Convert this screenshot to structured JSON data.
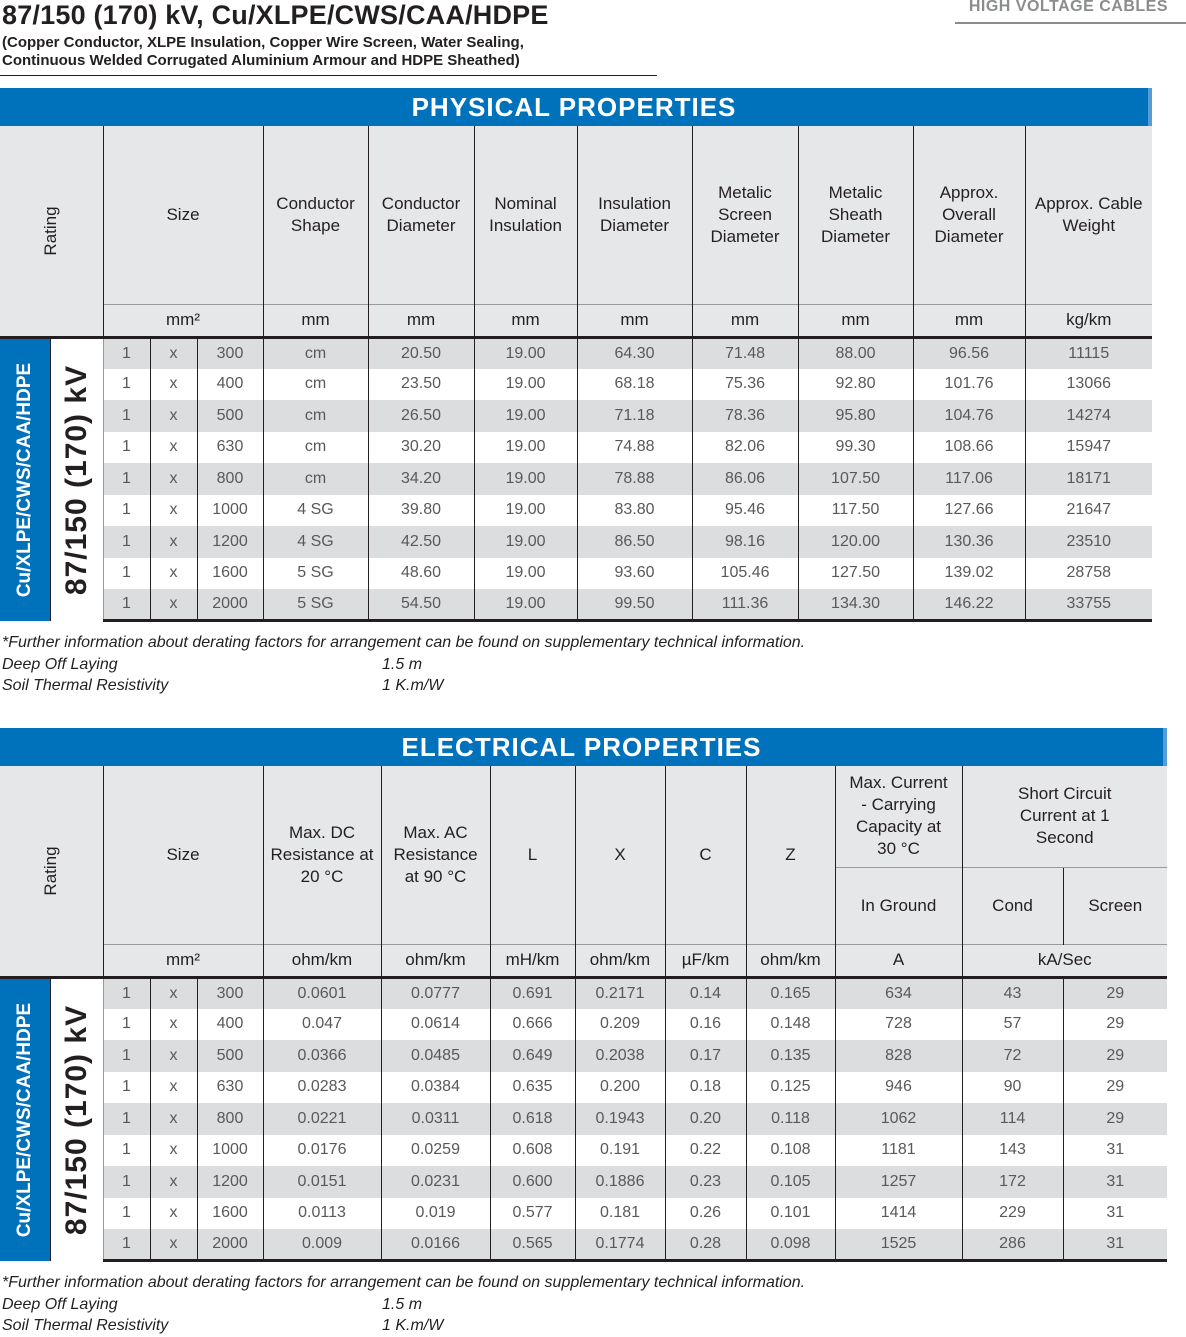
{
  "title": "87/150 (170) kV, Cu/XLPE/CWS/CAA/HDPE",
  "subtitle_1": "(Copper Conductor, XLPE Insulation, Copper Wire Screen, Water Sealing,",
  "subtitle_2": "Continuous Welded Corrugated Aluminium Armour and HDPE Sheathed)",
  "category": "HIGH VOLTAGE CABLES",
  "side_label_1": "Cu/XLPE/CWS/CAA/HDPE",
  "side_label_2": "87/150 (170) kV",
  "physical": {
    "banner": "PHYSICAL PROPERTIES",
    "rating_header": "Rating",
    "headers": [
      "Size",
      "Conductor Shape",
      "Conductor Diameter",
      "Nominal Insulation",
      "Insulation Diameter",
      "Metalic Screen Diameter",
      "Metalic Sheath Diameter",
      "Approx. Overall Diameter",
      "Approx. Cable Weight"
    ],
    "units": [
      "mm²",
      "mm",
      "mm",
      "mm",
      "mm",
      "mm",
      "mm",
      "mm",
      "kg/km"
    ],
    "rows": [
      [
        "1",
        "x",
        "300",
        "cm",
        "20.50",
        "19.00",
        "64.30",
        "71.48",
        "88.00",
        "96.56",
        "11115"
      ],
      [
        "1",
        "x",
        "400",
        "cm",
        "23.50",
        "19.00",
        "68.18",
        "75.36",
        "92.80",
        "101.76",
        "13066"
      ],
      [
        "1",
        "x",
        "500",
        "cm",
        "26.50",
        "19.00",
        "71.18",
        "78.36",
        "95.80",
        "104.76",
        "14274"
      ],
      [
        "1",
        "x",
        "630",
        "cm",
        "30.20",
        "19.00",
        "74.88",
        "82.06",
        "99.30",
        "108.66",
        "15947"
      ],
      [
        "1",
        "x",
        "800",
        "cm",
        "34.20",
        "19.00",
        "78.88",
        "86.06",
        "107.50",
        "117.06",
        "18171"
      ],
      [
        "1",
        "x",
        "1000",
        "4 SG",
        "39.80",
        "19.00",
        "83.80",
        "95.46",
        "117.50",
        "127.66",
        "21647"
      ],
      [
        "1",
        "x",
        "1200",
        "4 SG",
        "42.50",
        "19.00",
        "86.50",
        "98.16",
        "120.00",
        "130.36",
        "23510"
      ],
      [
        "1",
        "x",
        "1600",
        "5 SG",
        "48.60",
        "19.00",
        "93.60",
        "105.46",
        "127.50",
        "139.02",
        "28758"
      ],
      [
        "1",
        "x",
        "2000",
        "5 SG",
        "54.50",
        "19.00",
        "99.50",
        "111.36",
        "134.30",
        "146.22",
        "33755"
      ]
    ]
  },
  "electrical": {
    "banner": "ELECTRICAL PROPERTIES",
    "rating_header": "Rating",
    "headers": [
      "Size",
      "Max. DC Resistance at 20 °C",
      "Max. AC Resistance at 90 °C",
      "L",
      "X",
      "C",
      "Z"
    ],
    "current_header": "Max. Current - Carrying Capacity at 30 °C",
    "short_header": "Short Circuit Current at 1 Second",
    "sub_headers": [
      "In Ground",
      "Cond",
      "Screen"
    ],
    "units": [
      "mm²",
      "ohm/km",
      "ohm/km",
      "mH/km",
      "ohm/km",
      "µF/km",
      "ohm/km",
      "A",
      "kA/Sec"
    ],
    "rows": [
      [
        "1",
        "x",
        "300",
        "0.0601",
        "0.0777",
        "0.691",
        "0.2171",
        "0.14",
        "0.165",
        "634",
        "43",
        "29"
      ],
      [
        "1",
        "x",
        "400",
        "0.047",
        "0.0614",
        "0.666",
        "0.209",
        "0.16",
        "0.148",
        "728",
        "57",
        "29"
      ],
      [
        "1",
        "x",
        "500",
        "0.0366",
        "0.0485",
        "0.649",
        "0.2038",
        "0.17",
        "0.135",
        "828",
        "72",
        "29"
      ],
      [
        "1",
        "x",
        "630",
        "0.0283",
        "0.0384",
        "0.635",
        "0.200",
        "0.18",
        "0.125",
        "946",
        "90",
        "29"
      ],
      [
        "1",
        "x",
        "800",
        "0.0221",
        "0.0311",
        "0.618",
        "0.1943",
        "0.20",
        "0.118",
        "1062",
        "114",
        "29"
      ],
      [
        "1",
        "x",
        "1000",
        "0.0176",
        "0.0259",
        "0.608",
        "0.191",
        "0.22",
        "0.108",
        "1181",
        "143",
        "31"
      ],
      [
        "1",
        "x",
        "1200",
        "0.0151",
        "0.0231",
        "0.600",
        "0.1886",
        "0.23",
        "0.105",
        "1257",
        "172",
        "31"
      ],
      [
        "1",
        "x",
        "1600",
        "0.0113",
        "0.019",
        "0.577",
        "0.181",
        "0.26",
        "0.101",
        "1414",
        "229",
        "31"
      ],
      [
        "1",
        "x",
        "2000",
        "0.009",
        "0.0166",
        "0.565",
        "0.1774",
        "0.28",
        "0.098",
        "1525",
        "286",
        "31"
      ]
    ]
  },
  "notes": {
    "footnote": "*Further information about derating factors for arrangement can be found on supplementary technical information.",
    "depth_label": "Deep Off Laying",
    "depth_value": "1.5 m",
    "soil_label": "Soil Thermal Resistivity",
    "soil_value": "1 K.m/W"
  }
}
